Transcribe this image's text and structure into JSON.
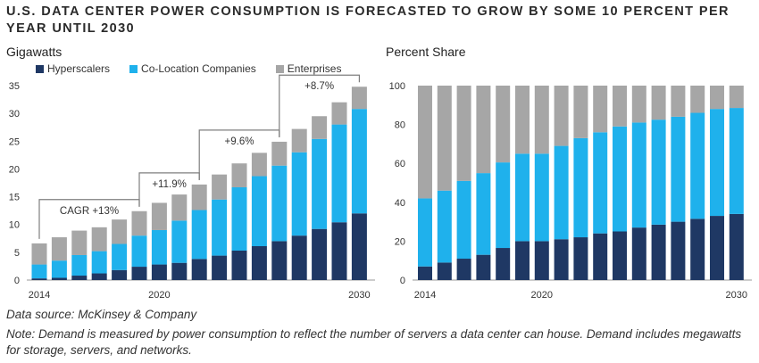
{
  "title": "U.S. DATA CENTER POWER CONSUMPTION IS FORECASTED TO GROW BY SOME 10 PERCENT PER YEAR UNTIL 2030",
  "left_panel_label": "Gigawatts",
  "right_panel_label": "Percent Share",
  "legend": [
    {
      "label": "Hyperscalers",
      "color": "#1f3864"
    },
    {
      "label": "Co-Location Companies",
      "color": "#1fb1ec"
    },
    {
      "label": "Enterprises",
      "color": "#a6a6a6"
    }
  ],
  "source": "Data source: McKinsey & Company",
  "note": "Note: Demand is measured by power consumption to reflect the number of servers a data center can house. Demand includes megawatts for storage, servers, and networks.",
  "chart_data": [
    {
      "type": "bar",
      "stacked": true,
      "title": "Gigawatts",
      "categories": [
        "2014",
        "2015",
        "2016",
        "2017",
        "2018",
        "2019",
        "2020",
        "2021",
        "2022",
        "2023",
        "2024",
        "2025",
        "2026",
        "2027",
        "2028",
        "2029",
        "2030"
      ],
      "x_tick_labels": [
        "2014",
        "2020",
        "2030"
      ],
      "series": [
        {
          "name": "Hyperscalers",
          "values": [
            0.3,
            0.4,
            0.8,
            1.2,
            1.8,
            2.4,
            2.8,
            3.1,
            3.8,
            4.4,
            5.3,
            6.1,
            7.0,
            8.0,
            9.2,
            10.4,
            12.0
          ]
        },
        {
          "name": "Co-Location Companies",
          "values": [
            2.5,
            3.1,
            3.7,
            4.0,
            4.7,
            5.6,
            6.2,
            7.6,
            8.8,
            10.1,
            11.4,
            12.6,
            13.6,
            15.0,
            16.2,
            17.6,
            18.8
          ]
        },
        {
          "name": "Enterprises",
          "values": [
            3.8,
            4.2,
            4.4,
            4.3,
            4.4,
            4.4,
            4.9,
            4.7,
            4.6,
            4.5,
            4.3,
            4.2,
            4.3,
            4.2,
            4.1,
            4.0,
            4.0
          ]
        }
      ],
      "ylim": [
        0,
        35
      ],
      "yticks": [
        0,
        5,
        10,
        15,
        20,
        25,
        30,
        35
      ],
      "annotations": [
        {
          "label": "CAGR +13%",
          "from": "2014",
          "to": "2019"
        },
        {
          "label": "+11.9%",
          "from": "2019",
          "to": "2022"
        },
        {
          "label": "+9.6%",
          "from": "2022",
          "to": "2026"
        },
        {
          "label": "+8.7%",
          "from": "2026",
          "to": "2030"
        }
      ]
    },
    {
      "type": "bar",
      "stacked": true,
      "title": "Percent Share",
      "categories": [
        "2014",
        "2015",
        "2016",
        "2017",
        "2018",
        "2019",
        "2020",
        "2021",
        "2022",
        "2023",
        "2024",
        "2025",
        "2026",
        "2027",
        "2028",
        "2029",
        "2030"
      ],
      "x_tick_labels": [
        "2014",
        "2020",
        "2030"
      ],
      "series": [
        {
          "name": "Hyperscalers",
          "values": [
            7,
            9,
            11,
            13,
            16.5,
            20,
            20,
            21,
            22,
            24,
            25,
            27,
            28.5,
            30,
            31.5,
            33,
            34
          ]
        },
        {
          "name": "Co-Location Companies",
          "values": [
            35,
            37,
            40,
            42,
            44,
            45,
            45,
            48,
            51,
            52,
            54,
            54,
            54,
            54,
            54.5,
            55,
            54.5
          ]
        },
        {
          "name": "Enterprises",
          "values": [
            58,
            54,
            49,
            45,
            39.5,
            35,
            35,
            31,
            27,
            24,
            21,
            19,
            17.5,
            16,
            14,
            12,
            11.5
          ]
        }
      ],
      "ylim": [
        0,
        100
      ],
      "yticks": [
        0,
        20,
        40,
        60,
        80,
        100
      ]
    }
  ]
}
